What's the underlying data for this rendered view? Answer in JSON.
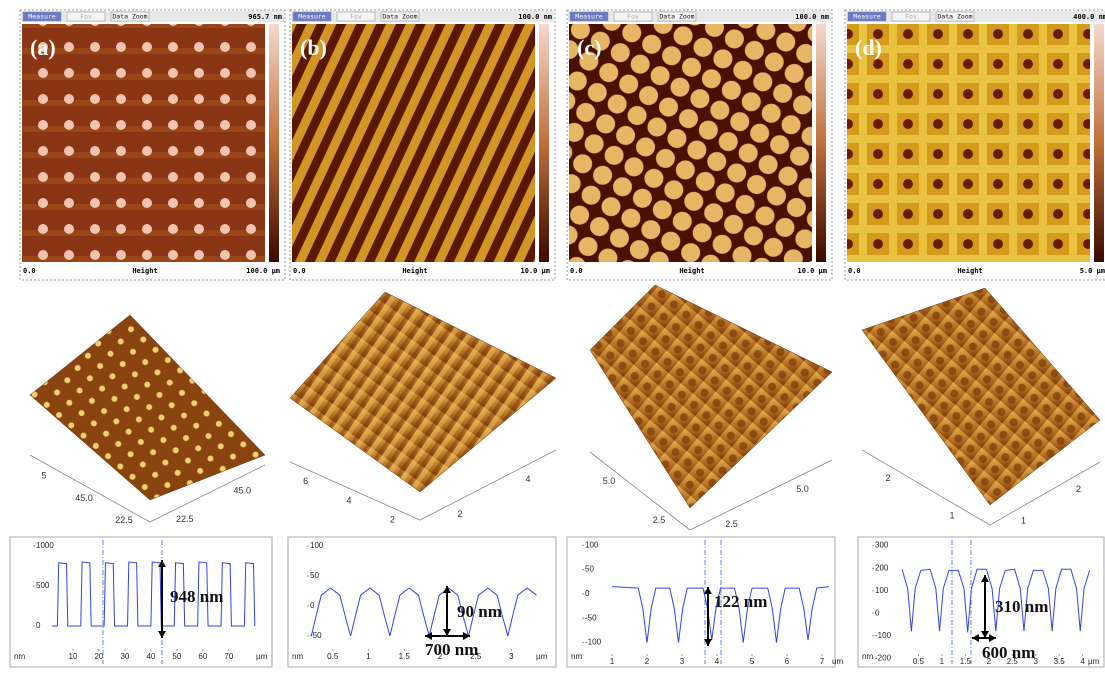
{
  "panels": [
    {
      "label": "(a)",
      "toolbar": [
        "Measure",
        "Fov",
        "Data Zoom"
      ],
      "max": "965.7 nm",
      "origin": "0.0",
      "axis": "Height",
      "scale": "100.0 µm",
      "view_left": [
        "5",
        "45.0",
        "22.5"
      ],
      "view_right": [
        "45.0",
        "22.5"
      ]
    },
    {
      "label": "(b)",
      "toolbar": [
        "Measure",
        "Fov",
        "Data Zoom"
      ],
      "max": "100.0 nm",
      "origin": "0.0",
      "axis": "Height",
      "scale": "10.0 µm",
      "view_left": [
        "6",
        "4",
        "2"
      ],
      "view_right": [
        "4",
        "2"
      ]
    },
    {
      "label": "(c)",
      "toolbar": [
        "Measure",
        "Fov",
        "Data Zoom"
      ],
      "max": "100.0 nm",
      "origin": "0.0",
      "axis": "Height",
      "scale": "10.0 µm",
      "view_left": [
        "5.0",
        "2.5"
      ],
      "view_right": [
        "5.0",
        "2.5"
      ]
    },
    {
      "label": "(d)",
      "toolbar": [
        "Measure",
        "Fov",
        "Data Zoom"
      ],
      "max": "400.0 nm",
      "origin": "0.0",
      "axis": "Height",
      "scale": "5.0 µm",
      "view_left": [
        "2",
        "1"
      ],
      "view_right": [
        "2",
        "1"
      ]
    }
  ],
  "chart_data": [
    {
      "type": "line",
      "color": "#3344dd",
      "x": [
        2,
        4,
        4.5,
        7.5,
        8,
        13,
        13.5,
        16.5,
        17,
        22,
        22.5,
        25.5,
        26,
        31,
        31.5,
        34.5,
        35,
        40,
        40.5,
        43.5,
        44,
        49,
        49.5,
        52.5,
        53,
        58,
        58.5,
        61.5,
        62,
        67,
        67.5,
        70.5,
        71,
        76,
        76.5,
        79.5,
        80
      ],
      "values": [
        0,
        0,
        790,
        780,
        0,
        0,
        800,
        790,
        0,
        0,
        790,
        780,
        0,
        0,
        800,
        790,
        0,
        0,
        800,
        790,
        0,
        0,
        790,
        780,
        0,
        0,
        800,
        790,
        0,
        0,
        790,
        780,
        0,
        0,
        790,
        780,
        0
      ],
      "xlim": [
        0,
        82
      ],
      "ylim": [
        -300,
        1075
      ],
      "xticks": [
        10,
        20,
        30,
        40,
        50,
        60,
        70
      ],
      "yticks": [
        1000,
        500,
        0
      ],
      "x_unit": "µm",
      "y_unit": "nm",
      "annotations": [
        "948 nm"
      ]
    },
    {
      "type": "line",
      "color": "#3344dd",
      "x": [
        0.2,
        0.27,
        0.34,
        0.47,
        0.6,
        0.67,
        0.75,
        0.82,
        0.89,
        1.02,
        1.15,
        1.22,
        1.3,
        1.37,
        1.44,
        1.57,
        1.7,
        1.77,
        1.85,
        1.92,
        1.99,
        2.12,
        2.25,
        2.32,
        2.4,
        2.47,
        2.54,
        2.67,
        2.8,
        2.87,
        2.95,
        3.02,
        3.09,
        3.22,
        3.35
      ],
      "values": [
        -50,
        -15,
        18,
        30,
        18,
        -15,
        -50,
        -15,
        18,
        30,
        18,
        -15,
        -50,
        -15,
        18,
        30,
        18,
        -15,
        -50,
        -15,
        18,
        30,
        18,
        -15,
        -50,
        -15,
        18,
        30,
        18,
        -15,
        -50,
        -15,
        18,
        30,
        18
      ],
      "xlim": [
        0,
        3.4
      ],
      "ylim": [
        -75,
        110
      ],
      "xticks": [
        0.5,
        1,
        1.5,
        2,
        2.5,
        3
      ],
      "yticks": [
        100,
        50,
        0,
        -50
      ],
      "x_unit": "µm",
      "y_unit": "nm",
      "annotations": [
        "90 nm",
        "700 nm"
      ]
    },
    {
      "type": "line",
      "color": "#3344dd",
      "x": [
        1.0,
        1.75,
        1.88,
        2.0,
        2.12,
        2.25,
        2.65,
        2.78,
        2.9,
        3.02,
        3.15,
        3.6,
        3.73,
        3.85,
        3.97,
        4.1,
        4.5,
        4.63,
        4.75,
        4.87,
        5.0,
        5.45,
        5.58,
        5.7,
        5.82,
        5.95,
        6.35,
        6.48,
        6.6,
        6.72,
        6.85,
        7.2
      ],
      "values": [
        15,
        12,
        -30,
        -100,
        -30,
        12,
        12,
        -30,
        -100,
        -30,
        12,
        12,
        -30,
        -95,
        -30,
        12,
        12,
        -30,
        -100,
        -30,
        12,
        12,
        -30,
        -100,
        -30,
        12,
        12,
        -30,
        -95,
        -30,
        12,
        15
      ],
      "xlim": [
        0,
        7.4
      ],
      "ylim": [
        -140,
        115
      ],
      "xticks": [
        1,
        2,
        3,
        4,
        5,
        6,
        7
      ],
      "yticks": [
        100,
        50,
        0,
        -50,
        -100
      ],
      "x_unit": "um",
      "y_unit": "nm",
      "annotations": [
        "122 nm"
      ]
    },
    {
      "type": "line",
      "color": "#3344dd",
      "x": [
        0.15,
        0.27,
        0.35,
        0.43,
        0.55,
        0.75,
        0.87,
        0.95,
        1.03,
        1.15,
        1.35,
        1.47,
        1.55,
        1.63,
        1.75,
        1.95,
        2.07,
        2.15,
        2.23,
        2.35,
        2.55,
        2.67,
        2.75,
        2.83,
        2.95,
        3.15,
        3.27,
        3.35,
        3.43,
        3.55,
        3.75,
        3.87,
        3.95,
        4.03,
        4.15
      ],
      "values": [
        195,
        110,
        -80,
        110,
        190,
        195,
        110,
        -80,
        110,
        190,
        190,
        110,
        -85,
        110,
        195,
        195,
        110,
        -80,
        110,
        190,
        195,
        110,
        -80,
        110,
        190,
        190,
        110,
        -80,
        110,
        195,
        195,
        110,
        -80,
        110,
        190
      ],
      "xlim": [
        0,
        4.2
      ],
      "ylim": [
        -230,
        325
      ],
      "xticks": [
        0.5,
        1,
        1.5,
        2,
        2.5,
        3,
        3.5,
        4
      ],
      "yticks": [
        300,
        200,
        100,
        0,
        -100,
        -200
      ],
      "x_unit": "µm",
      "y_unit": "nm",
      "annotations": [
        "310 nm",
        "600 nm"
      ]
    }
  ]
}
